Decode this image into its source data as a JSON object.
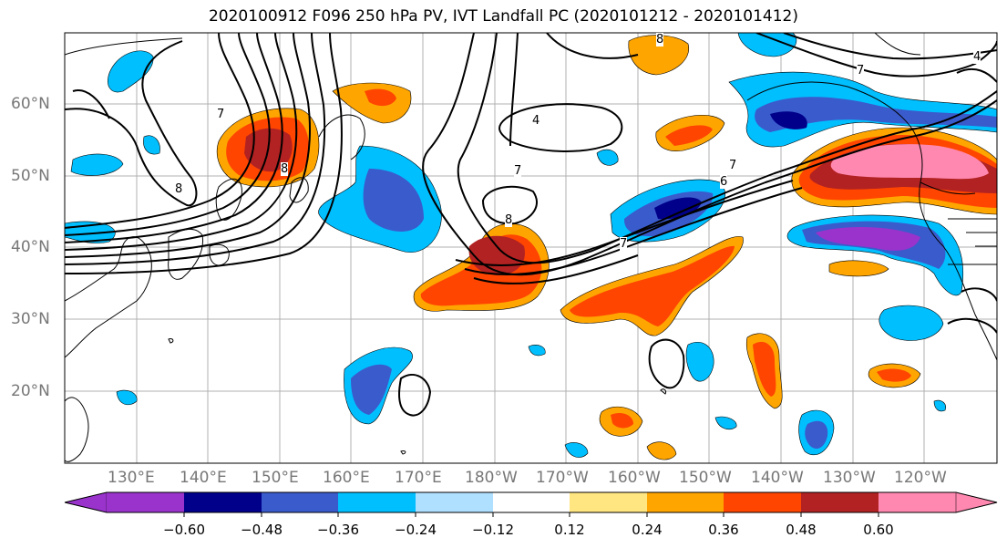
{
  "title": "2020100912 F096 250 hPa PV, IVT Landfall PC (2020101212 - 2020101412)",
  "lat_labels": [
    "60°N",
    "50°N",
    "40°N",
    "30°N",
    "20°N"
  ],
  "lon_labels": [
    "130°E",
    "140°E",
    "150°E",
    "160°E",
    "170°E",
    "180°W",
    "170°W",
    "160°W",
    "150°W",
    "140°W",
    "130°W",
    "120°W"
  ],
  "colorbar": {
    "ticks": [
      "−0.60",
      "−0.48",
      "−0.36",
      "−0.24",
      "−0.12",
      "0.12",
      "0.24",
      "0.36",
      "0.48",
      "0.60"
    ],
    "colors": [
      "#9933cc",
      "#00008b",
      "#3a5bcc",
      "#00bfff",
      "#b0e0ff",
      "#ffffff",
      "#ffe680",
      "#ffa500",
      "#ff4500",
      "#b22222",
      "#ff88b0"
    ]
  },
  "contour_labels": [
    "8",
    "7",
    "8",
    "4",
    "7",
    "8",
    "7",
    "7",
    "4",
    "6",
    "8",
    "7"
  ]
}
